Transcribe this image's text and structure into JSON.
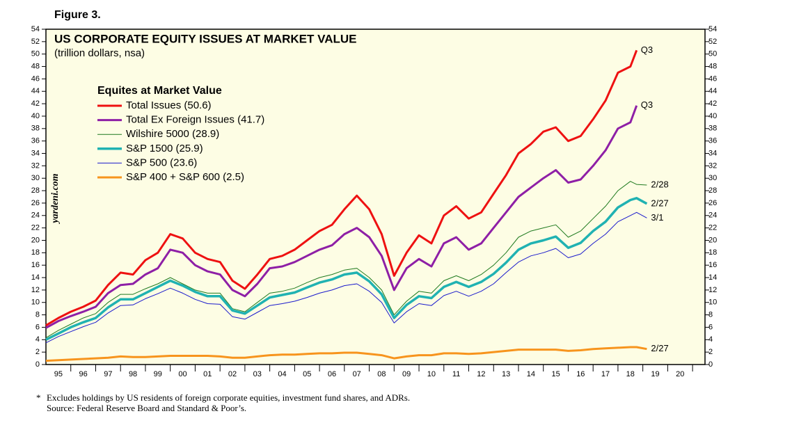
{
  "chart_data": {
    "type": "line",
    "figure_label": "Figure 3.",
    "title": "US CORPORATE EQUITY ISSUES AT MARKET VALUE",
    "subtitle": "(trillion dollars, nsa)",
    "legend_title": "Equites at Market Value",
    "watermark": "yardeni.com",
    "footnote_marker": "*",
    "footnotes": [
      "Excludes holdings by US residents of foreign corporate equities, investment fund shares, and ADRs.",
      "Source: Federal Reserve Board and Standard & Poor’s."
    ],
    "xlim": [
      1995,
      2021.5
    ],
    "ylim": [
      0,
      54
    ],
    "yticks": [
      0,
      2,
      4,
      6,
      8,
      10,
      12,
      14,
      16,
      18,
      20,
      22,
      24,
      26,
      28,
      30,
      32,
      34,
      36,
      38,
      40,
      42,
      44,
      46,
      48,
      50,
      52,
      54
    ],
    "xticks": [
      {
        "value": 1995.5,
        "label": "95"
      },
      {
        "value": 1996.5,
        "label": "96"
      },
      {
        "value": 1997.5,
        "label": "97"
      },
      {
        "value": 1998.5,
        "label": "98"
      },
      {
        "value": 1999.5,
        "label": "99"
      },
      {
        "value": 2000.5,
        "label": "00"
      },
      {
        "value": 2001.5,
        "label": "01"
      },
      {
        "value": 2002.5,
        "label": "02"
      },
      {
        "value": 2003.5,
        "label": "03"
      },
      {
        "value": 2004.5,
        "label": "04"
      },
      {
        "value": 2005.5,
        "label": "05"
      },
      {
        "value": 2006.5,
        "label": "06"
      },
      {
        "value": 2007.5,
        "label": "07"
      },
      {
        "value": 2008.5,
        "label": "08"
      },
      {
        "value": 2009.5,
        "label": "09"
      },
      {
        "value": 2010.5,
        "label": "10"
      },
      {
        "value": 2011.5,
        "label": "11"
      },
      {
        "value": 2012.5,
        "label": "12"
      },
      {
        "value": 2013.5,
        "label": "13"
      },
      {
        "value": 2014.5,
        "label": "14"
      },
      {
        "value": 2015.5,
        "label": "15"
      },
      {
        "value": 2016.5,
        "label": "16"
      },
      {
        "value": 2017.5,
        "label": "17"
      },
      {
        "value": 2018.5,
        "label": "18"
      },
      {
        "value": 2019.5,
        "label": "19"
      },
      {
        "value": 2020.5,
        "label": "20"
      }
    ],
    "x": [
      1995.0,
      1995.5,
      1996.0,
      1996.5,
      1997.0,
      1997.5,
      1998.0,
      1998.5,
      1999.0,
      1999.5,
      2000.0,
      2000.5,
      2001.0,
      2001.5,
      2002.0,
      2002.5,
      2003.0,
      2003.5,
      2004.0,
      2004.5,
      2005.0,
      2005.5,
      2006.0,
      2006.5,
      2007.0,
      2007.5,
      2008.0,
      2008.5,
      2009.0,
      2009.5,
      2010.0,
      2010.5,
      2011.0,
      2011.5,
      2012.0,
      2012.5,
      2013.0,
      2013.5,
      2014.0,
      2014.5,
      2015.0,
      2015.5,
      2016.0,
      2016.5,
      2017.0,
      2017.5,
      2018.0,
      2018.5,
      2018.75,
      2019.16
    ],
    "series": [
      {
        "name": "Total Issues (50.6)",
        "color": "#ee1111",
        "width": 3,
        "end_label": "Q3",
        "values": [
          6.3,
          7.5,
          8.5,
          9.3,
          10.3,
          12.8,
          14.8,
          14.5,
          16.8,
          18,
          21,
          20.3,
          18,
          17,
          16.5,
          13.5,
          12.2,
          14.5,
          17,
          17.5,
          18.5,
          20,
          21.5,
          22.5,
          25,
          27.2,
          25,
          21,
          14.3,
          18,
          20.8,
          19.5,
          24,
          25.5,
          23.5,
          24.5,
          27.5,
          30.5,
          34,
          35.5,
          37.5,
          38.2,
          36,
          36.8,
          39.5,
          42.5,
          47,
          48,
          50.6,
          null
        ]
      },
      {
        "name": "Total Ex Foreign Issues (41.7)",
        "color": "#8e1fa6",
        "width": 3,
        "end_label": "Q3",
        "values": [
          5.9,
          7,
          7.8,
          8.5,
          9.3,
          11.5,
          12.8,
          13,
          14.5,
          15.5,
          18.5,
          18,
          16,
          15,
          14.5,
          12,
          11,
          13,
          15.5,
          15.8,
          16.5,
          17.5,
          18.5,
          19.2,
          21,
          22,
          20.5,
          17.5,
          12,
          15.5,
          17,
          15.8,
          19.5,
          20.5,
          18.5,
          19.5,
          22,
          24.5,
          27,
          28.5,
          30,
          31.3,
          29.3,
          29.8,
          32,
          34.5,
          38,
          39,
          41.7,
          null
        ]
      },
      {
        "name": "Wilshire 5000 (28.9)",
        "color": "#1f7a1f",
        "width": 1,
        "end_label": "2/28",
        "values": [
          4.3,
          5.5,
          6.5,
          7.5,
          8.2,
          10,
          11.3,
          11.3,
          12.2,
          13,
          14,
          13,
          12,
          11.5,
          11.5,
          9,
          8.5,
          10,
          11.5,
          11.8,
          12.3,
          13.2,
          14,
          14.5,
          15.2,
          15.5,
          14,
          12,
          8,
          10.2,
          11.8,
          11.5,
          13.5,
          14.3,
          13.5,
          14.5,
          16,
          18,
          20.5,
          21.5,
          22,
          22.5,
          20.5,
          21.5,
          23.5,
          25.5,
          28,
          29.5,
          29,
          28.9
        ]
      },
      {
        "name": "S&P 1500 (25.9)",
        "color": "#20b2b2",
        "width": 3.5,
        "end_label": "2/27",
        "values": [
          4,
          5,
          6,
          6.8,
          7.5,
          9.2,
          10.5,
          10.5,
          11.5,
          12.5,
          13.5,
          12.7,
          11.7,
          11,
          11,
          8.7,
          8.2,
          9.5,
          10.8,
          11.2,
          11.6,
          12.4,
          13.2,
          13.7,
          14.5,
          14.8,
          13.4,
          11.3,
          7.5,
          9.6,
          11,
          10.7,
          12.5,
          13.3,
          12.5,
          13.3,
          14.6,
          16.4,
          18.5,
          19.5,
          20,
          20.6,
          18.8,
          19.6,
          21.5,
          23,
          25.3,
          26.5,
          26.8,
          25.9
        ]
      },
      {
        "name": "S&P 500 (23.6)",
        "color": "#1a1acc",
        "width": 1,
        "end_label": "3/1",
        "values": [
          3.5,
          4.5,
          5.3,
          6.1,
          6.8,
          8.3,
          9.5,
          9.6,
          10.6,
          11.4,
          12.3,
          11.5,
          10.5,
          9.8,
          9.7,
          7.7,
          7.3,
          8.4,
          9.5,
          9.8,
          10.2,
          10.8,
          11.5,
          12,
          12.7,
          13,
          11.8,
          10,
          6.7,
          8.5,
          9.8,
          9.5,
          11.1,
          11.8,
          11,
          11.8,
          13,
          14.8,
          16.5,
          17.5,
          18,
          18.7,
          17.2,
          17.8,
          19.5,
          21,
          23,
          24,
          24.5,
          23.6
        ]
      },
      {
        "name": "S&P 400 + S&P 600 (2.5)",
        "color": "#f7941d",
        "width": 3,
        "end_label": "2/27",
        "values": [
          0.6,
          0.7,
          0.8,
          0.9,
          1.0,
          1.1,
          1.3,
          1.2,
          1.2,
          1.3,
          1.4,
          1.4,
          1.4,
          1.4,
          1.3,
          1.1,
          1.1,
          1.3,
          1.5,
          1.6,
          1.6,
          1.7,
          1.8,
          1.8,
          1.9,
          1.9,
          1.7,
          1.5,
          1.0,
          1.3,
          1.5,
          1.5,
          1.8,
          1.8,
          1.7,
          1.8,
          2.0,
          2.2,
          2.4,
          2.4,
          2.4,
          2.4,
          2.2,
          2.3,
          2.5,
          2.6,
          2.7,
          2.8,
          2.8,
          2.5
        ]
      }
    ]
  }
}
